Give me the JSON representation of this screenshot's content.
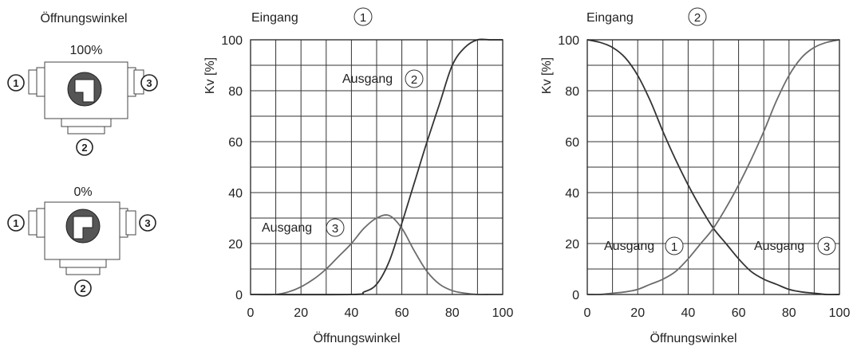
{
  "diagram": {
    "heading": "Öffnungswinkel",
    "valves": [
      {
        "label": "100%",
        "ports": {
          "left": "1",
          "bottom": "2",
          "right": "3"
        }
      },
      {
        "label": "0%",
        "ports": {
          "left": "1",
          "bottom": "2",
          "right": "3"
        }
      }
    ]
  },
  "chart_data": [
    {
      "type": "line",
      "title": "Eingang",
      "title_number": "1",
      "xlabel": "Öffnungswinkel",
      "ylabel": "Kv [%]",
      "xlim": [
        0,
        100
      ],
      "ylim": [
        0,
        100
      ],
      "xticks": [
        0,
        20,
        40,
        60,
        80,
        100
      ],
      "yticks": [
        0,
        20,
        40,
        60,
        80,
        100
      ],
      "grid": true,
      "series": [
        {
          "name": "Ausgang",
          "number": "2",
          "x": [
            0,
            40,
            45,
            50,
            55,
            60,
            65,
            70,
            75,
            80,
            85,
            90,
            95,
            100
          ],
          "y": [
            0,
            0,
            1,
            4,
            13,
            28,
            44,
            60,
            75,
            90,
            97,
            100,
            100,
            100
          ]
        },
        {
          "name": "Ausgang",
          "number": "3",
          "x": [
            0,
            10,
            15,
            20,
            25,
            30,
            35,
            40,
            45,
            50,
            55,
            60,
            65,
            70,
            75,
            80,
            85,
            90,
            95,
            100
          ],
          "y": [
            0,
            0,
            1,
            3,
            6,
            10,
            15,
            20,
            26,
            30,
            31,
            26,
            17,
            9,
            4,
            1.5,
            0.5,
            0,
            0,
            0
          ]
        }
      ]
    },
    {
      "type": "line",
      "title": "Eingang",
      "title_number": "2",
      "xlabel": "Öffnungswinkel",
      "ylabel": "Kv [%]",
      "xlim": [
        0,
        100
      ],
      "ylim": [
        0,
        100
      ],
      "xticks": [
        0,
        20,
        40,
        60,
        80,
        100
      ],
      "yticks": [
        0,
        20,
        40,
        60,
        80,
        100
      ],
      "grid": true,
      "series": [
        {
          "name": "Ausgang",
          "number": "1",
          "x": [
            0,
            5,
            10,
            15,
            20,
            25,
            30,
            35,
            40,
            45,
            50,
            55,
            60,
            65,
            70,
            75,
            80,
            85,
            90,
            95,
            100
          ],
          "y": [
            100,
            99,
            97,
            93,
            86,
            76,
            64,
            53,
            43,
            34,
            26,
            20,
            14,
            9,
            6,
            4,
            2,
            1,
            0.5,
            0,
            0
          ]
        },
        {
          "name": "Ausgang",
          "number": "3",
          "x": [
            0,
            5,
            10,
            15,
            20,
            25,
            30,
            35,
            40,
            45,
            50,
            55,
            60,
            65,
            70,
            75,
            80,
            85,
            90,
            95,
            100
          ],
          "y": [
            0,
            0,
            0.5,
            1,
            2,
            4,
            6,
            9,
            14,
            20,
            26,
            34,
            43,
            53,
            64,
            76,
            86,
            93,
            97,
            99,
            100
          ]
        }
      ]
    }
  ]
}
